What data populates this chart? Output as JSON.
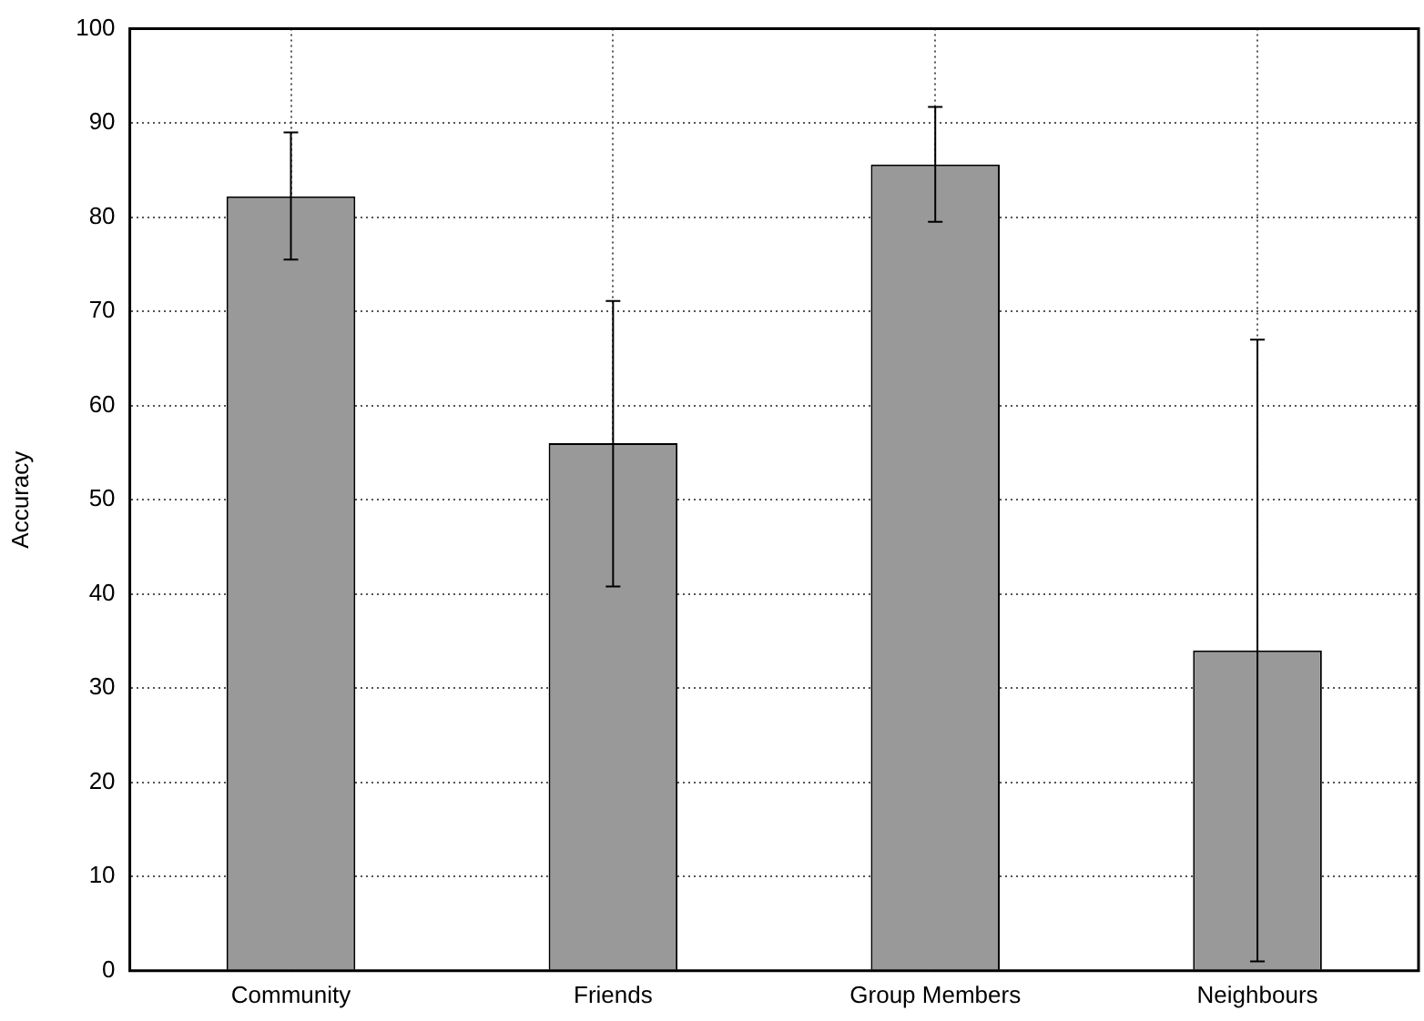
{
  "chart_data": {
    "type": "bar",
    "ylabel": "Accuracy",
    "categories": [
      "Community",
      "Friends",
      "Group Members",
      "Neighbours"
    ],
    "values": [
      82.2,
      56,
      85.6,
      34
    ],
    "errors": [
      [
        75.5,
        89
      ],
      [
        40.8,
        71.1
      ],
      [
        79.5,
        91.7
      ],
      [
        1,
        67
      ]
    ],
    "color": "#999999",
    "ylim": [
      0,
      100
    ],
    "yticks": [
      0,
      10,
      20,
      30,
      40,
      50,
      60,
      70,
      80,
      90,
      100
    ],
    "grid": true,
    "legend": false
  }
}
